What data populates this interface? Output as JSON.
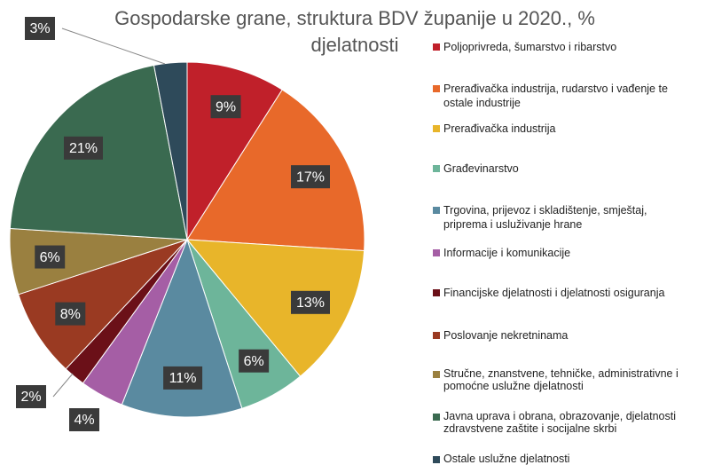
{
  "chart_data": {
    "type": "pie",
    "title": "Gospodarske grane, struktura BDV županije u 2020., % djelatnosti",
    "categories": [
      "Poljoprivreda, šumarstvo i ribarstvo",
      "Prerađivačka industrija, rudarstvo i vađenje te ostale industrije",
      "Prerađivačka industrija",
      "Građevinarstvo",
      "Trgovina, prijevoz i skladištenje, smještaj, priprema i usluživanje hrane",
      "Informacije i komunikacije",
      "Financijske djelatnosti i djelatnosti osiguranja",
      "Poslovanje nekretninama",
      "Stručne, znanstvene, tehničke, administrativne i pomoćne uslužne djelatnosti",
      "Javna uprava i obrana, obrazovanje, djelatnosti zdravstvene zaštite i socijalne skrbi",
      "Ostale uslužne djelatnosti"
    ],
    "values": [
      9,
      17,
      13,
      6,
      11,
      4,
      2,
      8,
      6,
      21,
      3
    ],
    "value_labels": [
      "9%",
      "17%",
      "13%",
      "6%",
      "11%",
      "4%",
      "2%",
      "8%",
      "6%",
      "21%",
      "3%"
    ],
    "colors": [
      "#c0202a",
      "#e8692a",
      "#e8b52a",
      "#6db59a",
      "#5a8aa0",
      "#a55ea5",
      "#6b1018",
      "#9a3a22",
      "#9a8040",
      "#3a6a50",
      "#2e4a5a"
    ],
    "legend": "right"
  }
}
